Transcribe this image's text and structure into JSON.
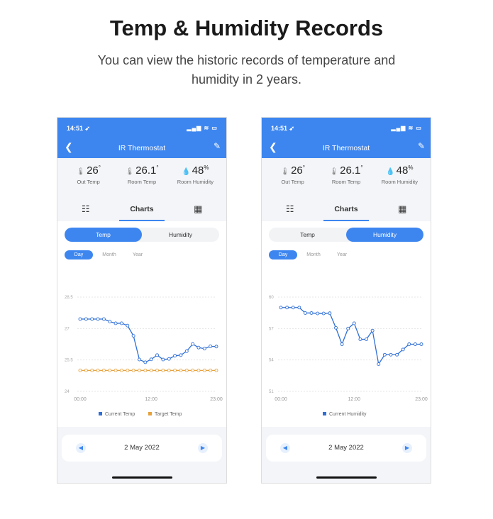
{
  "heading": {
    "title": "Temp & Humidity Records",
    "subtitle": "You can view the historic records of temperature and humidity in 2 years."
  },
  "colors": {
    "accent": "#3d86f0",
    "current": "#2f6fd6",
    "target": "#e6a23c"
  },
  "phones": [
    {
      "status": {
        "time": "14:51 ➶",
        "icons": "▂▄▆ ≋ ▭"
      },
      "appbar": {
        "back_icon": "chevron-left-icon",
        "title": "IR Thermostat",
        "edit_icon": "edit-icon"
      },
      "stats": [
        {
          "icon": "🌡",
          "value": "26",
          "unit": "°",
          "label": "Out Temp"
        },
        {
          "icon": "🌡",
          "value": "26.1",
          "unit": "°",
          "label": "Room Temp"
        },
        {
          "icon": "💧",
          "value": "48",
          "unit": "%",
          "label": "Room Humidity"
        }
      ],
      "tabs": {
        "settings_icon": "☷",
        "charts": "Charts",
        "grid_icon": "▦"
      },
      "segment": {
        "temp": "Temp",
        "humidity": "Humidity",
        "active": "temp"
      },
      "period": {
        "day": "Day",
        "month": "Month",
        "year": "Year",
        "active": "day"
      },
      "chart_data": {
        "type": "line",
        "ylim": [
          24,
          28.5
        ],
        "yticks": [
          "28.5",
          "27",
          "25.5",
          "24"
        ],
        "xticks": [
          "00:00",
          "12:00",
          "23:00"
        ],
        "x": [
          0,
          1,
          2,
          3,
          4,
          5,
          6,
          7,
          8,
          9,
          10,
          11,
          12,
          13,
          14,
          15,
          16,
          17,
          18,
          19,
          20,
          21,
          22,
          23
        ],
        "series": [
          {
            "name": "Current Temp",
            "color": "#2f6fd6",
            "values": [
              27.45,
              27.45,
              27.45,
              27.45,
              27.45,
              27.33,
              27.25,
              27.25,
              27.14,
              26.65,
              25.52,
              25.39,
              25.53,
              25.73,
              25.52,
              25.55,
              25.7,
              25.73,
              25.92,
              26.26,
              26.09,
              26.04,
              26.15,
              26.14
            ]
          },
          {
            "name": "Target Temp",
            "color": "#e6a23c",
            "values": [
              25,
              25,
              25,
              25,
              25,
              25,
              25,
              25,
              25,
              25,
              25,
              25,
              25,
              25,
              25,
              25,
              25,
              25,
              25,
              25,
              25,
              25,
              25,
              25
            ]
          }
        ],
        "legend": "bottom",
        "grid": true
      },
      "date": {
        "prev_icon": "◀",
        "value": "2 May 2022",
        "next_icon": "▶"
      }
    },
    {
      "status": {
        "time": "14:51 ➶",
        "icons": "▂▄▆ ≋ ▭"
      },
      "appbar": {
        "back_icon": "chevron-left-icon",
        "title": "IR Thermostat",
        "edit_icon": "edit-icon"
      },
      "stats": [
        {
          "icon": "🌡",
          "value": "26",
          "unit": "°",
          "label": "Out Temp"
        },
        {
          "icon": "🌡",
          "value": "26.1",
          "unit": "°",
          "label": "Room Temp"
        },
        {
          "icon": "💧",
          "value": "48",
          "unit": "%",
          "label": "Room Humidity"
        }
      ],
      "tabs": {
        "settings_icon": "☷",
        "charts": "Charts",
        "grid_icon": "▦"
      },
      "segment": {
        "temp": "Temp",
        "humidity": "Humidity",
        "active": "humidity"
      },
      "period": {
        "day": "Day",
        "month": "Month",
        "year": "Year",
        "active": "day"
      },
      "chart_data": {
        "type": "line",
        "ylim": [
          51,
          60
        ],
        "yticks": [
          "60",
          "57",
          "54",
          "51"
        ],
        "xticks": [
          "00:00",
          "12:00",
          "23:00"
        ],
        "x": [
          0,
          1,
          2,
          3,
          4,
          5,
          6,
          7,
          8,
          9,
          10,
          11,
          12,
          13,
          14,
          15,
          16,
          17,
          18,
          19,
          20,
          21,
          22,
          23
        ],
        "series": [
          {
            "name": "Current Humidity",
            "color": "#2f6fd6",
            "values": [
              59.0,
              59.0,
              59.0,
              59.0,
              58.48,
              58.48,
              58.44,
              58.44,
              58.46,
              57.07,
              55.5,
              57.0,
              57.5,
              55.97,
              55.97,
              56.8,
              53.6,
              54.5,
              54.5,
              54.5,
              55.0,
              55.5,
              55.5,
              55.5
            ]
          }
        ],
        "legend": "bottom",
        "grid": true
      },
      "date": {
        "prev_icon": "◀",
        "value": "2 May 2022",
        "next_icon": "▶"
      }
    }
  ]
}
